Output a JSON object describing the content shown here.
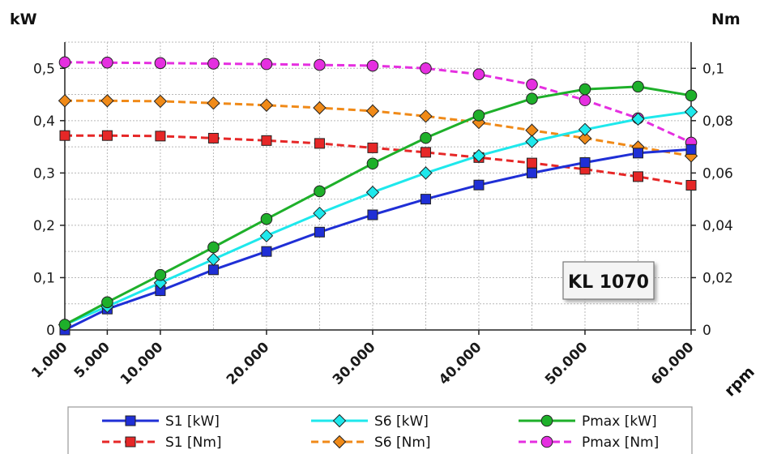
{
  "chart_data": {
    "type": "line",
    "x_categories": [
      "1.000",
      "5.000",
      "10.000",
      "20.000",
      "30.000",
      "40.000",
      "50.000",
      "60.000"
    ],
    "x_values": [
      1000,
      5000,
      10000,
      15000,
      20000,
      25000,
      30000,
      35000,
      40000,
      45000,
      50000,
      55000,
      60000
    ],
    "x_axis_ticks": [
      1000,
      5000,
      10000,
      20000,
      30000,
      40000,
      50000,
      60000
    ],
    "xlabel": "rpm",
    "ylabel_left": "kW",
    "ylabel_right": "Nm",
    "ylim_left": [
      0,
      0.55
    ],
    "ylim_right": [
      0,
      0.11
    ],
    "yticks_left": [
      "0",
      "0,1",
      "0,2",
      "0,3",
      "0,4",
      "0,5"
    ],
    "yticks_right": [
      "0",
      "0,02",
      "0,04",
      "0,06",
      "0,08",
      "0,1"
    ],
    "annotation": "KL 1070",
    "grid": true,
    "legend_position": "bottom",
    "series": [
      {
        "name": "S1 [kW]",
        "axis": "left",
        "color": "#1f2fd6",
        "dash": false,
        "marker": "square",
        "values": [
          0.0,
          0.04,
          0.075,
          0.115,
          0.15,
          0.187,
          0.22,
          0.25,
          0.277,
          0.3,
          0.32,
          0.338,
          0.345
        ]
      },
      {
        "name": "S6 [kW]",
        "axis": "left",
        "color": "#1ee8ec",
        "dash": false,
        "marker": "diamond",
        "values": [
          0.01,
          0.045,
          0.09,
          0.135,
          0.18,
          0.223,
          0.263,
          0.3,
          0.333,
          0.36,
          0.383,
          0.403,
          0.417
        ]
      },
      {
        "name": "Pmax [kW]",
        "axis": "left",
        "color": "#1eb02a",
        "dash": false,
        "marker": "circle",
        "values": [
          0.01,
          0.053,
          0.105,
          0.158,
          0.212,
          0.265,
          0.318,
          0.367,
          0.41,
          0.442,
          0.46,
          0.465,
          0.448
        ]
      },
      {
        "name": "S1 [Nm]",
        "axis": "right",
        "color": "#e62727",
        "dash": true,
        "marker": "square",
        "values": [
          0.0743,
          0.0743,
          0.0741,
          0.0733,
          0.0724,
          0.0713,
          0.0696,
          0.0679,
          0.0659,
          0.0638,
          0.0614,
          0.0586,
          0.0553
        ]
      },
      {
        "name": "S6 [Nm]",
        "axis": "right",
        "color": "#f08a18",
        "dash": true,
        "marker": "diamond",
        "values": [
          0.0876,
          0.0876,
          0.0874,
          0.0867,
          0.0859,
          0.0849,
          0.0837,
          0.0817,
          0.0793,
          0.0763,
          0.0733,
          0.0699,
          0.0665
        ]
      },
      {
        "name": "Pmax [Nm]",
        "axis": "right",
        "color": "#e52fe0",
        "dash": true,
        "marker": "circle",
        "values": [
          0.1023,
          0.1022,
          0.102,
          0.1018,
          0.1016,
          0.1013,
          0.101,
          0.1,
          0.0977,
          0.0938,
          0.0878,
          0.0809,
          0.0716
        ]
      }
    ]
  }
}
